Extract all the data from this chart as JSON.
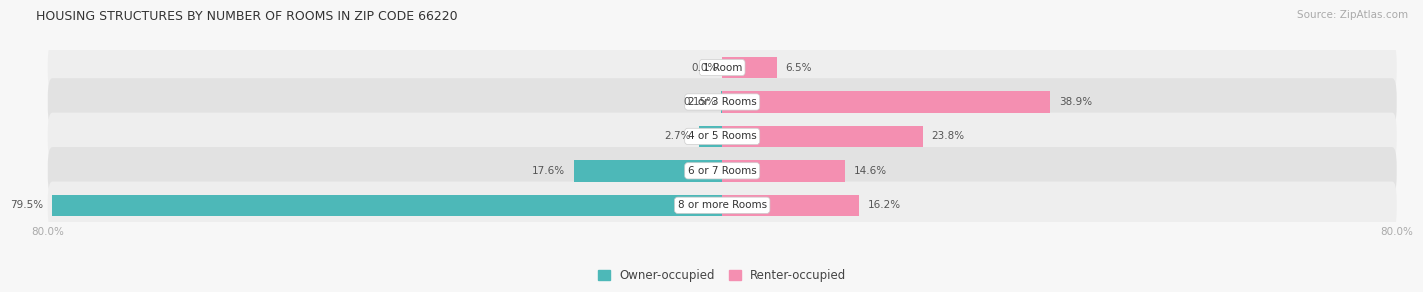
{
  "title": "HOUSING STRUCTURES BY NUMBER OF ROOMS IN ZIP CODE 66220",
  "source": "Source: ZipAtlas.com",
  "categories": [
    "1 Room",
    "2 or 3 Rooms",
    "4 or 5 Rooms",
    "6 or 7 Rooms",
    "8 or more Rooms"
  ],
  "owner_values": [
    0.0,
    0.15,
    2.7,
    17.6,
    79.5
  ],
  "renter_values": [
    6.5,
    38.9,
    23.8,
    14.6,
    16.2
  ],
  "x_min": -80.0,
  "x_max": 80.0,
  "owner_color": "#4db8b8",
  "renter_color": "#f48fb1",
  "bar_height": 0.62,
  "row_bg_light": "#eeeeee",
  "row_bg_dark": "#e2e2e2",
  "label_color": "#555555",
  "title_color": "#333333",
  "axis_label_color": "#aaaaaa",
  "fig_bg": "#f7f7f7"
}
